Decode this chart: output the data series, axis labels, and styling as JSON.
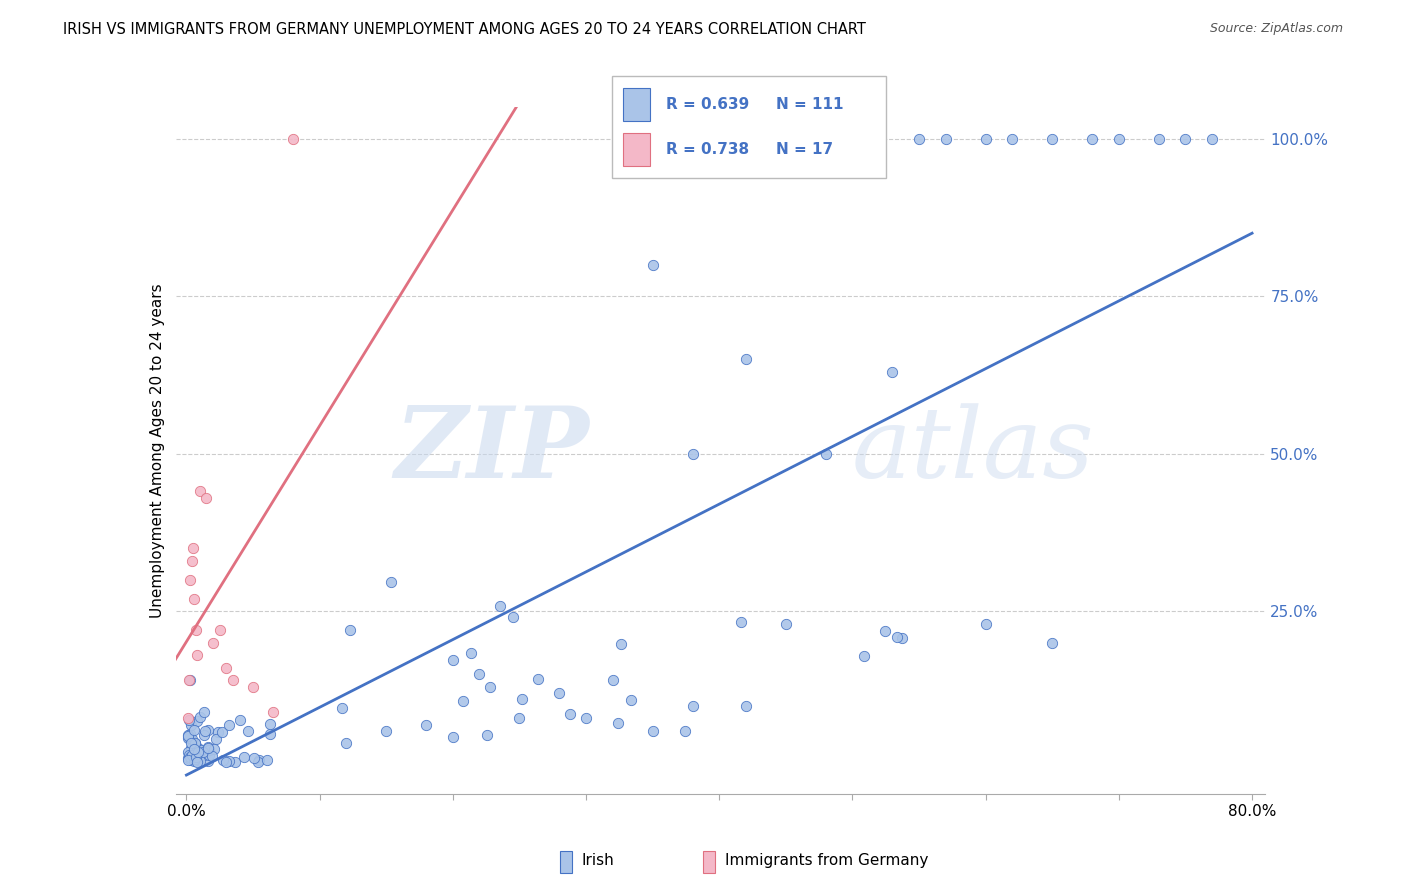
{
  "title": "IRISH VS IMMIGRANTS FROM GERMANY UNEMPLOYMENT AMONG AGES 20 TO 24 YEARS CORRELATION CHART",
  "source": "Source: ZipAtlas.com",
  "ylabel_label": "Unemployment Among Ages 20 to 24 years",
  "legend_irish_R": "0.639",
  "legend_irish_N": "111",
  "legend_german_R": "0.738",
  "legend_german_N": "17",
  "legend_labels": [
    "Irish",
    "Immigrants from Germany"
  ],
  "irish_color": "#aac4e8",
  "irish_line_color": "#4472c4",
  "german_color": "#f4b8c8",
  "german_line_color": "#e07080",
  "watermark_zip": "ZIP",
  "watermark_atlas": "atlas",
  "x_min": 0.0,
  "x_max": 0.8,
  "y_min": 0.0,
  "y_max": 1.05
}
